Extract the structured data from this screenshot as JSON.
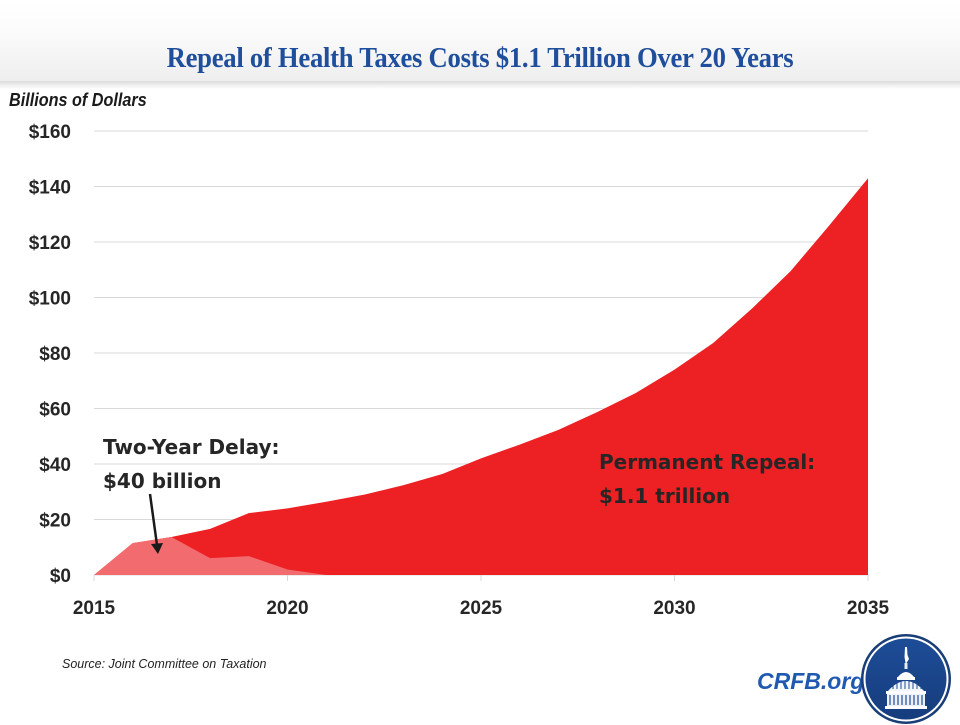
{
  "header": {
    "title": "Repeal of Health Taxes Costs $1.1 Trillion Over 20 Years"
  },
  "chart_data": {
    "type": "area",
    "title": "Repeal of Health Taxes Costs $1.1 Trillion Over 20 Years",
    "xlabel": "",
    "ylabel": "Billions of Dollars",
    "x": [
      2015,
      2016,
      2017,
      2018,
      2019,
      2020,
      2021,
      2022,
      2023,
      2024,
      2025,
      2026,
      2027,
      2028,
      2029,
      2030,
      2031,
      2032,
      2033,
      2034,
      2035
    ],
    "series": [
      {
        "name": "Permanent Repeal",
        "color": "#ed2024",
        "values": [
          0,
          11.5,
          13.7,
          16.6,
          22.3,
          24,
          26.4,
          29,
          32.4,
          36.4,
          42,
          47,
          52.3,
          58.7,
          65.6,
          74,
          83.6,
          96,
          109.5,
          126,
          143
        ]
      },
      {
        "name": "Two-Year Delay",
        "color": "#f26b6e",
        "values": [
          0,
          11.5,
          13.7,
          6.1,
          6.8,
          2,
          0,
          0,
          0,
          0,
          0,
          0,
          0,
          0,
          0,
          0,
          0,
          0,
          0,
          0,
          0
        ]
      }
    ],
    "xlim": [
      2015,
      2035
    ],
    "ylim": [
      0,
      160
    ],
    "x_ticks": [
      2015,
      2020,
      2025,
      2030,
      2035
    ],
    "x_tick_labels": [
      "2015",
      "2020",
      "2025",
      "2030",
      "2035"
    ],
    "y_ticks": [
      0,
      20,
      40,
      60,
      80,
      100,
      120,
      140,
      160
    ],
    "y_tick_labels": [
      "$0",
      "$20",
      "$40",
      "$60",
      "$80",
      "$100",
      "$120",
      "$140",
      "$160"
    ],
    "grid": true,
    "legend": "none",
    "annotations": [
      {
        "id": "delay",
        "line1": "Two-Year Delay:",
        "line2": "$40 billion",
        "points_to_year": 2017
      },
      {
        "id": "permanent",
        "line1": "Permanent Repeal:",
        "line2": "$1.1 trillion"
      }
    ]
  },
  "footer": {
    "source": "Source: Joint Committee on Taxation",
    "brand": "CRFB.org",
    "logo_icon": "capitol-dome-logo-icon"
  },
  "colors": {
    "title": "#1f4e9c",
    "permanent": "#ed2024",
    "delay": "#f26b6e",
    "brand": "#1f5ab0",
    "logo_bg": "#1e4f97"
  }
}
